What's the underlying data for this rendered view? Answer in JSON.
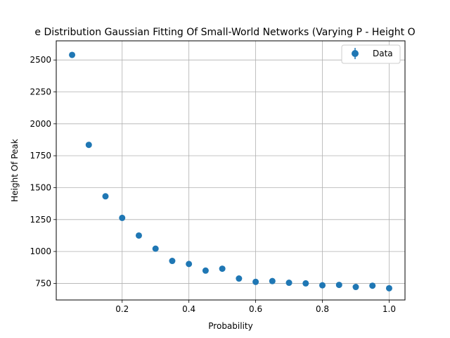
{
  "chart_data": {
    "type": "scatter",
    "title": "e Distribution Gaussian Fitting Of Small-World Networks (Varying P - Height O",
    "xlabel": "Probability",
    "ylabel": "Height Of Peak",
    "xlim": [
      0.0025,
      1.0475
    ],
    "ylim": [
      620,
      2650
    ],
    "xticks": [
      0.2,
      0.4,
      0.6,
      0.8,
      1.0
    ],
    "xtick_labels": [
      "0.2",
      "0.4",
      "0.6",
      "0.8",
      "1.0"
    ],
    "yticks": [
      750,
      1000,
      1250,
      1500,
      1750,
      2000,
      2250,
      2500
    ],
    "ytick_labels": [
      "750",
      "1000",
      "1250",
      "1500",
      "1750",
      "2000",
      "2250",
      "2500"
    ],
    "grid": true,
    "legend_position": "top-right",
    "series": [
      {
        "name": "Data",
        "color": "#1f77b4",
        "x": [
          0.05,
          0.1,
          0.15,
          0.2,
          0.25,
          0.3,
          0.35,
          0.4,
          0.45,
          0.5,
          0.55,
          0.6,
          0.65,
          0.7,
          0.75,
          0.8,
          0.85,
          0.9,
          0.95,
          1.0
        ],
        "y": [
          2540,
          1835,
          1432,
          1263,
          1125,
          1022,
          926,
          902,
          850,
          865,
          788,
          762,
          768,
          755,
          750,
          735,
          738,
          722,
          732,
          712
        ]
      }
    ]
  }
}
